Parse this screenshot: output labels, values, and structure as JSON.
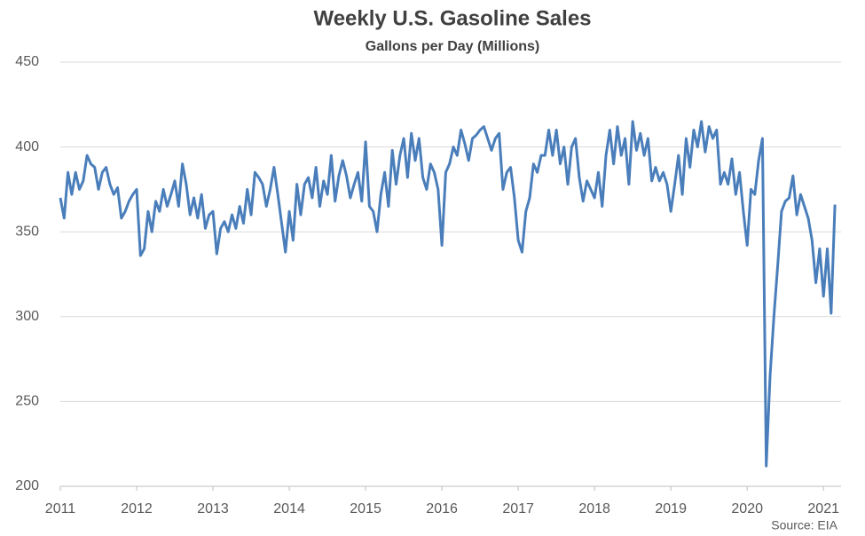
{
  "chart_data": {
    "type": "line",
    "title": "Weekly U.S. Gasoline Sales",
    "subtitle": "Gallons per Day (Millions)",
    "source": "Source: EIA",
    "x": [
      2011.0,
      2011.05,
      2011.1,
      2011.15,
      2011.2,
      2011.25,
      2011.3,
      2011.35,
      2011.4,
      2011.45,
      2011.5,
      2011.55,
      2011.6,
      2011.65,
      2011.7,
      2011.75,
      2011.8,
      2011.85,
      2011.9,
      2011.95,
      2012.0,
      2012.05,
      2012.1,
      2012.15,
      2012.2,
      2012.25,
      2012.3,
      2012.35,
      2012.4,
      2012.45,
      2012.5,
      2012.55,
      2012.6,
      2012.65,
      2012.7,
      2012.75,
      2012.8,
      2012.85,
      2012.9,
      2012.95,
      2013.0,
      2013.05,
      2013.1,
      2013.15,
      2013.2,
      2013.25,
      2013.3,
      2013.35,
      2013.4,
      2013.45,
      2013.5,
      2013.55,
      2013.6,
      2013.65,
      2013.7,
      2013.75,
      2013.8,
      2013.85,
      2013.9,
      2013.95,
      2014.0,
      2014.05,
      2014.1,
      2014.15,
      2014.2,
      2014.25,
      2014.3,
      2014.35,
      2014.4,
      2014.45,
      2014.5,
      2014.55,
      2014.6,
      2014.65,
      2014.7,
      2014.75,
      2014.8,
      2014.85,
      2014.9,
      2014.95,
      2015.0,
      2015.05,
      2015.1,
      2015.15,
      2015.2,
      2015.25,
      2015.3,
      2015.35,
      2015.4,
      2015.45,
      2015.5,
      2015.55,
      2015.6,
      2015.65,
      2015.7,
      2015.75,
      2015.8,
      2015.85,
      2015.9,
      2015.95,
      2016.0,
      2016.05,
      2016.1,
      2016.15,
      2016.2,
      2016.25,
      2016.3,
      2016.35,
      2016.4,
      2016.45,
      2016.5,
      2016.55,
      2016.6,
      2016.65,
      2016.7,
      2016.75,
      2016.8,
      2016.85,
      2016.9,
      2016.95,
      2017.0,
      2017.05,
      2017.1,
      2017.15,
      2017.2,
      2017.25,
      2017.3,
      2017.35,
      2017.4,
      2017.45,
      2017.5,
      2017.55,
      2017.6,
      2017.65,
      2017.7,
      2017.75,
      2017.8,
      2017.85,
      2017.9,
      2017.95,
      2018.0,
      2018.05,
      2018.1,
      2018.15,
      2018.2,
      2018.25,
      2018.3,
      2018.35,
      2018.4,
      2018.45,
      2018.5,
      2018.55,
      2018.6,
      2018.65,
      2018.7,
      2018.75,
      2018.8,
      2018.85,
      2018.9,
      2018.95,
      2019.0,
      2019.05,
      2019.1,
      2019.15,
      2019.2,
      2019.25,
      2019.3,
      2019.35,
      2019.4,
      2019.45,
      2019.5,
      2019.55,
      2019.6,
      2019.65,
      2019.7,
      2019.75,
      2019.8,
      2019.85,
      2019.9,
      2019.95,
      2020.0,
      2020.05,
      2020.1,
      2020.15,
      2020.2,
      2020.25,
      2020.3,
      2020.35,
      2020.4,
      2020.45,
      2020.5,
      2020.55,
      2020.6,
      2020.65,
      2020.7,
      2020.75,
      2020.8,
      2020.85,
      2020.9,
      2020.95,
      2021.0,
      2021.05,
      2021.1,
      2021.15
    ],
    "series": [
      {
        "name": "Gasoline Sales",
        "color": "#4a7ebb",
        "values": [
          370,
          358,
          385,
          372,
          385,
          375,
          380,
          395,
          390,
          388,
          375,
          385,
          388,
          378,
          372,
          376,
          358,
          362,
          368,
          372,
          375,
          336,
          340,
          362,
          350,
          368,
          362,
          375,
          365,
          372,
          380,
          365,
          390,
          378,
          360,
          370,
          358,
          372,
          352,
          360,
          362,
          337,
          352,
          356,
          350,
          360,
          352,
          365,
          355,
          375,
          360,
          385,
          382,
          378,
          365,
          375,
          388,
          372,
          355,
          338,
          362,
          345,
          378,
          360,
          378,
          382,
          370,
          388,
          365,
          380,
          372,
          395,
          368,
          383,
          392,
          383,
          370,
          378,
          385,
          368,
          403,
          365,
          362,
          350,
          372,
          385,
          365,
          398,
          378,
          395,
          405,
          382,
          408,
          392,
          405,
          382,
          375,
          390,
          385,
          375,
          342,
          385,
          390,
          400,
          395,
          410,
          402,
          392,
          405,
          407,
          410,
          412,
          405,
          398,
          405,
          408,
          375,
          385,
          388,
          370,
          345,
          338,
          362,
          370,
          390,
          385,
          395,
          395,
          410,
          395,
          410,
          390,
          400,
          378,
          400,
          405,
          382,
          368,
          380,
          375,
          370,
          385,
          365,
          395,
          410,
          390,
          412,
          395,
          405,
          378,
          415,
          398,
          408,
          395,
          405,
          380,
          388,
          380,
          385,
          378,
          362,
          378,
          395,
          372,
          405,
          388,
          410,
          400,
          415,
          397,
          412,
          405,
          410,
          378,
          385,
          378,
          393,
          372,
          385,
          362,
          342,
          375,
          372,
          392,
          405,
          212,
          265,
          300,
          330,
          362,
          368,
          370,
          383,
          360,
          372,
          365,
          358,
          345,
          320,
          340,
          312,
          340,
          302,
          366
        ]
      }
    ],
    "xlim": [
      2011,
      2021.23
    ],
    "xticks": [
      2011,
      2012,
      2013,
      2014,
      2015,
      2016,
      2017,
      2018,
      2019,
      2020,
      2021
    ],
    "ylim": [
      200,
      450
    ],
    "yticks": [
      200,
      250,
      300,
      350,
      400,
      450
    ],
    "grid": true
  }
}
